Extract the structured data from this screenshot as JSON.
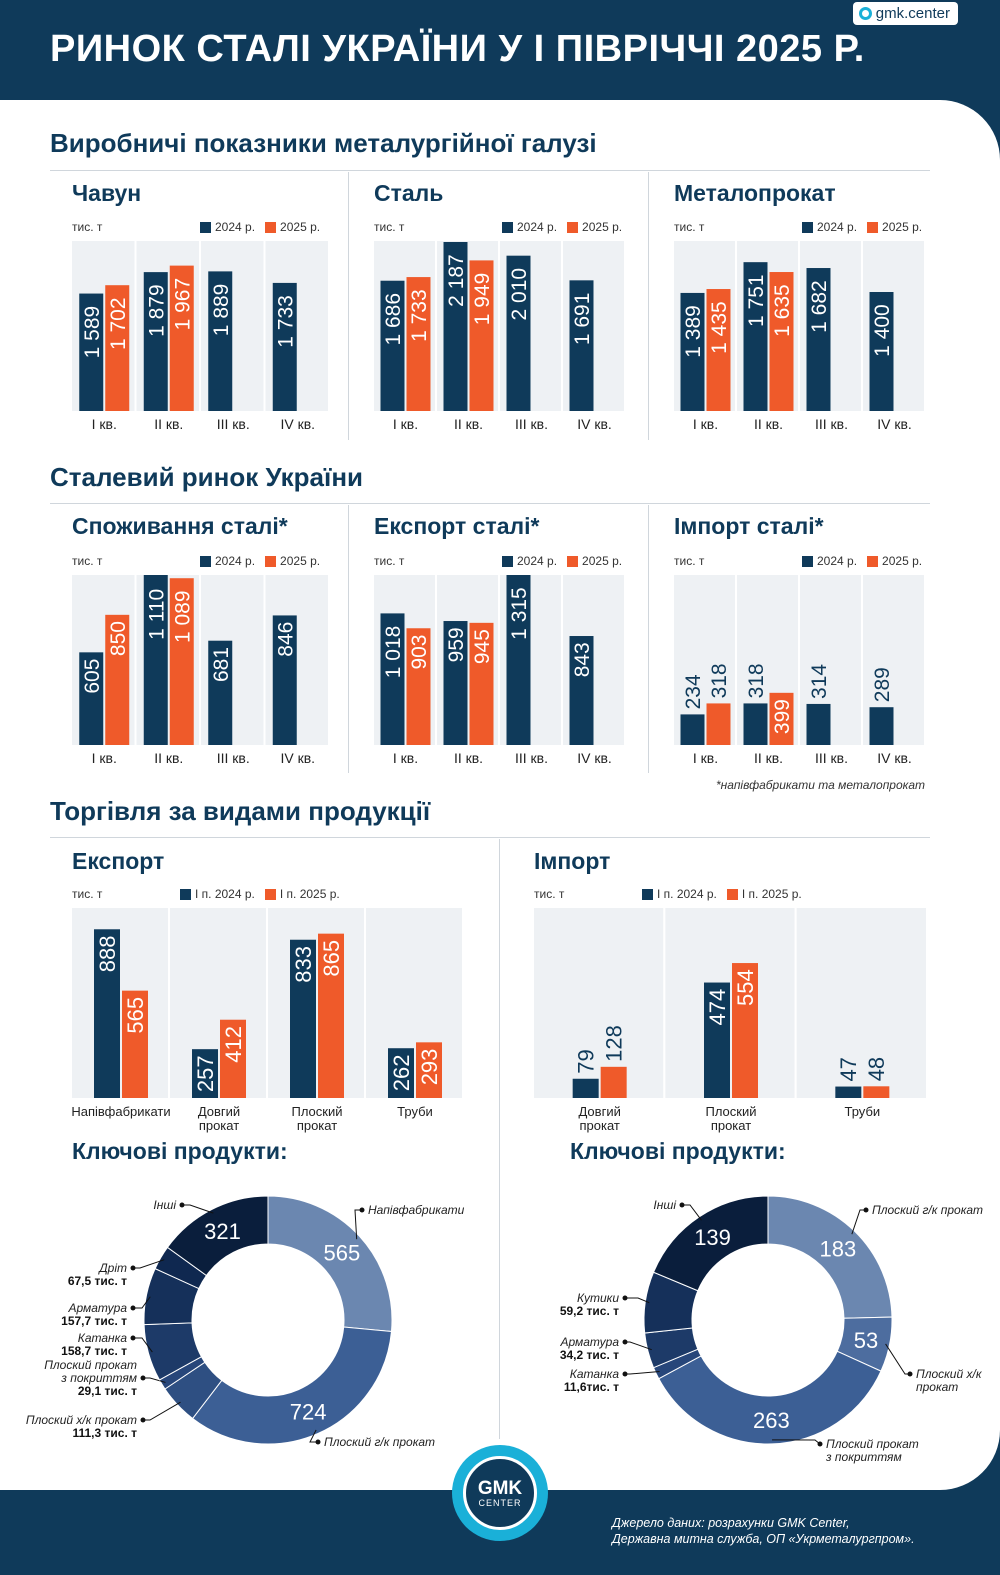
{
  "header": {
    "title": "РИНОК СТАЛІ УКРАЇНИ У І ПІВРІЧЧІ 2025 Р.",
    "brand": "gmk.center"
  },
  "sections": {
    "production": "Виробничі показники металургійної галузі",
    "market": "Сталевий ринок України",
    "trade": "Торгівля за видами продукції"
  },
  "unit": "тис. т",
  "legend_year": {
    "s2024": "2024 р.",
    "s2025": "2025 р."
  },
  "legend_half": {
    "s2024": "І п. 2024 р.",
    "s2025": "І п. 2025 р."
  },
  "colors": {
    "navy": "#0f3a5a",
    "orange": "#ef5a2a",
    "accent": "#1ab0d8"
  },
  "footnote": "*напівфабрикати та металопрокат",
  "key_products_title": "Ключові продукти:",
  "source": {
    "line1": "Джерело даних: розрахунки GMK Center,",
    "line2": "Державна митна служба, ОП «Укрметалургпром»."
  },
  "logo": {
    "line1": "GMK",
    "line2": "CENTER"
  },
  "chart_data": [
    {
      "id": "pig-iron",
      "type": "bar",
      "title": "Чавун",
      "categories": [
        "І кв.",
        "ІІ кв.",
        "ІІІ кв.",
        "IV кв."
      ],
      "series": [
        {
          "name": "2024 р.",
          "values": [
            1589,
            1879,
            1889,
            1733
          ],
          "labels": [
            "1 589",
            "1 879",
            "1 889",
            "1 733"
          ]
        },
        {
          "name": "2025 р.",
          "values": [
            1702,
            1967,
            null,
            null
          ],
          "labels": [
            "1 702",
            "1 967",
            "",
            ""
          ]
        }
      ],
      "ylim": [
        0,
        2300
      ]
    },
    {
      "id": "steel",
      "type": "bar",
      "title": "Сталь",
      "categories": [
        "І кв.",
        "ІІ кв.",
        "ІІІ кв.",
        "IV кв."
      ],
      "series": [
        {
          "name": "2024 р.",
          "values": [
            1686,
            2187,
            2010,
            1691
          ],
          "labels": [
            "1 686",
            "2 187",
            "2 010",
            "1 691"
          ]
        },
        {
          "name": "2025 р.",
          "values": [
            1733,
            1949,
            null,
            null
          ],
          "labels": [
            "1 733",
            "1 949",
            "",
            ""
          ]
        }
      ],
      "ylim": [
        0,
        2200
      ]
    },
    {
      "id": "rolled",
      "type": "bar",
      "title": "Металопрокат",
      "categories": [
        "І кв.",
        "ІІ кв.",
        "ІІІ кв.",
        "IV кв."
      ],
      "series": [
        {
          "name": "2024 р.",
          "values": [
            1389,
            1751,
            1682,
            1400
          ],
          "labels": [
            "1 389",
            "1 751",
            "1 682",
            "1 400"
          ]
        },
        {
          "name": "2025 р.",
          "values": [
            1435,
            1635,
            null,
            null
          ],
          "labels": [
            "1 435",
            "1 635",
            "",
            ""
          ]
        }
      ],
      "ylim": [
        0,
        2000
      ]
    },
    {
      "id": "consumption",
      "type": "bar",
      "title": "Споживання сталі*",
      "categories": [
        "І кв.",
        "ІІ кв.",
        "ІІІ кв.",
        "IV кв."
      ],
      "series": [
        {
          "name": "2024 р.",
          "values": [
            605,
            1110,
            681,
            846
          ],
          "labels": [
            "605",
            "1 110",
            "681",
            "846"
          ]
        },
        {
          "name": "2025 р.",
          "values": [
            850,
            1089,
            null,
            null
          ],
          "labels": [
            "850",
            "1 089",
            "",
            ""
          ]
        }
      ],
      "ylim": [
        0,
        1110
      ]
    },
    {
      "id": "export",
      "type": "bar",
      "title": "Експорт сталі*",
      "categories": [
        "І кв.",
        "ІІ кв.",
        "ІІІ кв.",
        "IV кв."
      ],
      "series": [
        {
          "name": "2024 р.",
          "values": [
            1018,
            959,
            1315,
            843
          ],
          "labels": [
            "1 018",
            "959",
            "1 315",
            "843"
          ]
        },
        {
          "name": "2025 р.",
          "values": [
            903,
            945,
            null,
            null
          ],
          "labels": [
            "903",
            "945",
            "",
            ""
          ]
        }
      ],
      "ylim": [
        0,
        1315
      ]
    },
    {
      "id": "import",
      "type": "bar",
      "title": "Імпорт сталі*",
      "categories": [
        "І кв.",
        "ІІ кв.",
        "ІІІ кв.",
        "IV кв."
      ],
      "series": [
        {
          "name": "2024 р.",
          "values": [
            234,
            318,
            314,
            289
          ],
          "labels": [
            "234",
            "318",
            "314",
            "289"
          ]
        },
        {
          "name": "2025 р.",
          "values": [
            318,
            399,
            null,
            null
          ],
          "labels": [
            "318",
            "399",
            "",
            ""
          ]
        }
      ],
      "ylim": [
        0,
        1300
      ]
    },
    {
      "id": "export-products",
      "type": "bar",
      "title": "Експорт",
      "categories": [
        "Напівфабрикати",
        "Довгий прокат",
        "Плоский прокат",
        "Труби"
      ],
      "series": [
        {
          "name": "І п. 2024 р.",
          "values": [
            888,
            257,
            833,
            262
          ],
          "labels": [
            "888",
            "257",
            "833",
            "262"
          ]
        },
        {
          "name": "І п. 2025 р.",
          "values": [
            565,
            412,
            865,
            293
          ],
          "labels": [
            "565",
            "412",
            "865",
            "293"
          ]
        }
      ],
      "ylim": [
        0,
        1000
      ]
    },
    {
      "id": "import-products",
      "type": "bar",
      "title": "Імпорт",
      "categories": [
        "Довгий прокат",
        "Плоский прокат",
        "Труби"
      ],
      "series": [
        {
          "name": "І п. 2024 р.",
          "values": [
            79,
            474,
            47
          ],
          "labels": [
            "79",
            "474",
            "47"
          ]
        },
        {
          "name": "І п. 2025 р.",
          "values": [
            128,
            554,
            48
          ],
          "labels": [
            "128",
            "554",
            "48"
          ]
        }
      ],
      "ylim": [
        0,
        780
      ]
    },
    {
      "id": "export-key-products",
      "type": "pie",
      "title": "Ключові продукти:",
      "slices": [
        {
          "name": "Напівфабрикати",
          "value": 565,
          "label": "565",
          "color": "#6b87b0"
        },
        {
          "name": "Плоский г/к прокат",
          "value": 724,
          "label": "724",
          "color": "#3c5f95"
        },
        {
          "name": "Плоский х/к прокат",
          "value": 111.3,
          "valueText": "111,3 тис. т",
          "color": "#2e4f82"
        },
        {
          "name": "Плоский прокат з покриттям",
          "value": 29.1,
          "valueText": "29,1 тис. т",
          "color": "#27467a"
        },
        {
          "name": "Катанка",
          "value": 158.7,
          "valueText": "158,7 тис. т",
          "color": "#1d3a68"
        },
        {
          "name": "Арматура",
          "value": 157.7,
          "valueText": "157,7 тис. т",
          "color": "#15305a"
        },
        {
          "name": "Дріт",
          "value": 67.5,
          "valueText": "67,5 тис. т",
          "color": "#0f2850"
        },
        {
          "name": "Інші",
          "value": 321,
          "label": "321",
          "color": "#0a1e3c"
        }
      ]
    },
    {
      "id": "import-key-products",
      "type": "pie",
      "title": "Ключові продукти:",
      "slices": [
        {
          "name": "Плоский г/к прокат",
          "value": 183,
          "label": "183",
          "color": "#6b87b0"
        },
        {
          "name": "Плоский х/к прокат",
          "value": 53,
          "label": "53",
          "color": "#4d6d9f"
        },
        {
          "name": "Плоский прокат з покриттям",
          "value": 263,
          "label": "263",
          "color": "#3c5f95"
        },
        {
          "name": "Катанка",
          "value": 11.6,
          "valueText": "11,6тис. т",
          "color": "#27467a"
        },
        {
          "name": "Арматура",
          "value": 34.2,
          "valueText": "34,2 тис. т",
          "color": "#1d3a68"
        },
        {
          "name": "Кутики",
          "value": 59.2,
          "valueText": "59,2 тис. т",
          "color": "#15305a"
        },
        {
          "name": "Інші",
          "value": 139,
          "label": "139",
          "color": "#0a1e3c"
        }
      ]
    }
  ]
}
